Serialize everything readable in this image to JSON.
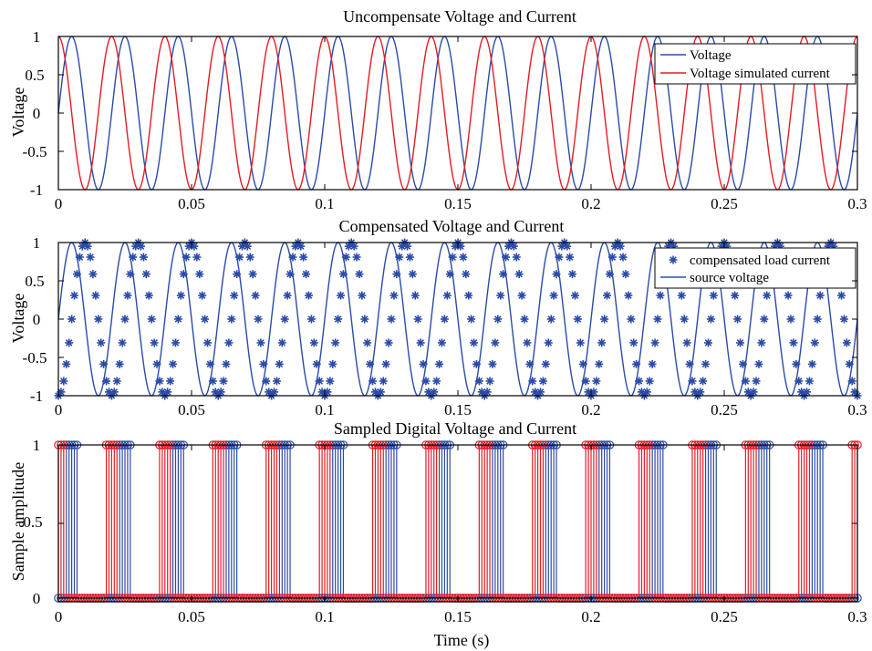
{
  "colors": {
    "voltage": "#2b4ba8",
    "current": "#e51b24",
    "axis": "#000000"
  },
  "chart_data": [
    {
      "type": "line",
      "title": "Uncompensate Voltage and Current",
      "xlabel": "",
      "ylabel": "Voltage",
      "xlim": [
        0,
        0.3
      ],
      "ylim": [
        -1,
        1
      ],
      "x_ticks": [
        "0",
        "0.05",
        "0.1",
        "0.15",
        "0.2",
        "0.25",
        "0.3"
      ],
      "y_ticks": [
        "-1",
        "-0.5",
        "0",
        "0.5",
        "1"
      ],
      "legend_position": "top-right",
      "frequency_hz": 50,
      "series": [
        {
          "name": "Voltage",
          "style": "line",
          "color": "#2b4ba8",
          "function": "sin(2*pi*50*t)"
        },
        {
          "name": "Voltage simulated current",
          "style": "line",
          "color": "#e51b24",
          "function": "cos(2*pi*50*t)"
        }
      ]
    },
    {
      "type": "line",
      "title": "Compensated Voltage and Current",
      "xlabel": "",
      "ylabel": "Voltage",
      "xlim": [
        0,
        0.3
      ],
      "ylim": [
        -1,
        1
      ],
      "x_ticks": [
        "0",
        "0.05",
        "0.1",
        "0.15",
        "0.2",
        "0.25",
        "0.3"
      ],
      "y_ticks": [
        "-1",
        "-0.5",
        "0",
        "0.5",
        "1"
      ],
      "legend_position": "top-right",
      "frequency_hz": 50,
      "series": [
        {
          "name": "compensated load current",
          "style": "marker-star",
          "color": "#2b4ba8",
          "function": "sin(2*pi*50*t - 0.5*pi)",
          "sample_step": 0.001
        },
        {
          "name": "source voltage",
          "style": "line",
          "color": "#2b4ba8",
          "function": "sin(2*pi*50*t)"
        }
      ]
    },
    {
      "type": "stem",
      "title": "Sampled Digital Voltage and Current",
      "xlabel": "Time (s)",
      "ylabel": "Sample amplitude",
      "xlim": [
        0,
        0.3
      ],
      "ylim": [
        0,
        1
      ],
      "x_ticks": [
        "0",
        "0.05",
        "0.1",
        "0.15",
        "0.2",
        "0.25",
        "0.3"
      ],
      "y_ticks": [
        "0",
        "0.5",
        "1"
      ],
      "sample_step": 0.001,
      "series": [
        {
          "style": "stem",
          "color": "#2b4ba8",
          "rule": "1 when sin(2*pi*50*t) > 0.72, else 0"
        },
        {
          "style": "stem",
          "color": "#e51b24",
          "rule": "1 when cos(2*pi*50*t) > 0.72, else 0"
        }
      ]
    }
  ]
}
